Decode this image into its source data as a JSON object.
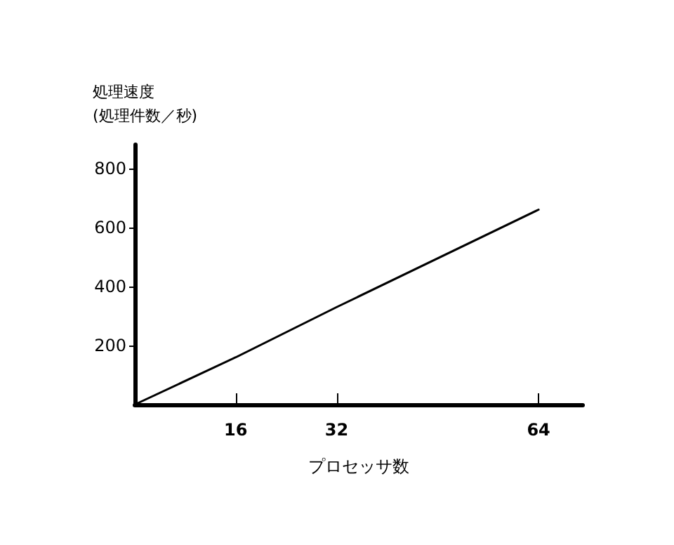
{
  "chart_data": {
    "type": "line",
    "ylabel": "処理速度\n(処理件数／秒)",
    "xlabel": "プロセッサ数",
    "x": [
      0,
      16,
      32,
      64
    ],
    "series": [
      {
        "color": "#000000",
        "values": [
          0,
          160,
          330,
          660
        ]
      }
    ],
    "xlim": [
      0,
      71
    ],
    "xticks": [
      16,
      32,
      64
    ],
    "ylim": [
      0,
      880
    ],
    "yticks": [
      200,
      400,
      600,
      800
    ],
    "grid": false,
    "marker": "none",
    "line_style": "solid"
  }
}
